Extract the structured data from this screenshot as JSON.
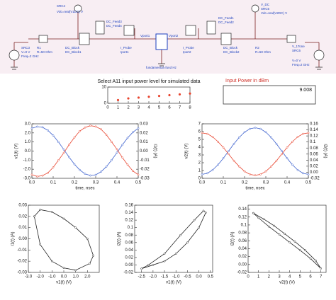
{
  "schematic": {
    "labels": [
      "SRC4",
      "Vdc=real(V1DC) V",
      "DC_Feed3",
      "DC_Feed4",
      "Vport1",
      "I_Probe",
      "Iport1",
      "DC_Block",
      "DC_Block1",
      "R1",
      "R=50 Ohm",
      "SRC3",
      "V=0 V",
      "Freq=2 GHz",
      "fundamental=fund Hz",
      "Vport2",
      "I_Probe",
      "Iport2",
      "V_DC",
      "SRC5",
      "Vdc=real(V2DC) V",
      "DC_Feed1",
      "DC_Feed2",
      "DC_Block",
      "DC_Block2",
      "R2",
      "R=50 Ohm",
      "V_1Tone",
      "SRC6",
      "V=0 V",
      "Freq=2 GHz"
    ]
  },
  "power_box": {
    "label": "Input Power in dBm",
    "value": "9.008"
  },
  "chart_data": [
    {
      "type": "scatter",
      "title": "Select A11 input power level for simulated data",
      "x": [
        1,
        2,
        3,
        4,
        5,
        6,
        7,
        8
      ],
      "series": [
        {
          "color": "#e8442e",
          "values": [
            2,
            3,
            3.5,
            4,
            4.5,
            5,
            5.5,
            6
          ]
        }
      ],
      "xlim": [
        0,
        8
      ],
      "xticks": [
        0,
        1,
        2,
        3,
        4,
        5,
        6,
        7,
        8
      ],
      "ylim": [
        0,
        10
      ],
      "yticks": [
        0,
        10
      ],
      "grid": false
    },
    {
      "type": "line",
      "xlabel": "time, nsec",
      "ylabel": "v1(t) (V)",
      "y2label": "i1(t) (A)",
      "x": [
        0,
        0.025,
        0.05,
        0.075,
        0.1,
        0.125,
        0.15,
        0.175,
        0.2,
        0.225,
        0.25,
        0.275,
        0.3,
        0.325,
        0.35,
        0.375,
        0.4,
        0.425,
        0.45,
        0.475,
        0.5
      ],
      "series": [
        {
          "color": "#3a5fcd",
          "values": [
            2.51,
            2.69,
            2.62,
            2.28,
            1.72,
            0.99,
            0.17,
            -0.67,
            -1.45,
            -2.08,
            -2.51,
            -2.69,
            -2.62,
            -2.28,
            -1.72,
            -0.99,
            -0.17,
            0.67,
            1.45,
            2.08,
            2.51
          ]
        },
        {
          "color": "#e8442e",
          "axis": "y2",
          "values": [
            -0.026,
            -0.028,
            -0.027,
            -0.024,
            -0.018,
            -0.01,
            -0.002,
            0.007,
            0.015,
            0.022,
            0.026,
            0.028,
            0.027,
            0.024,
            0.018,
            0.01,
            0.002,
            -0.007,
            -0.015,
            -0.022,
            -0.026
          ]
        }
      ],
      "xlim": [
        0,
        0.5
      ],
      "xticks": [
        {
          "value": 0,
          "label": "0.0"
        },
        0.1,
        0.2,
        0.3,
        0.4,
        0.5
      ],
      "ylim": [
        -3,
        3
      ],
      "yticks": [
        {
          "value": -3,
          "label": "-3.0"
        },
        {
          "value": -2,
          "label": "-2.0"
        },
        {
          "value": -1,
          "label": "-1.0"
        },
        {
          "value": 0,
          "label": "0.0"
        },
        {
          "value": 1,
          "label": "1.0"
        },
        {
          "value": 2,
          "label": "2.0"
        },
        {
          "value": 3,
          "label": "3.0"
        }
      ],
      "y2lim": [
        -0.03,
        0.03
      ],
      "y2ticks": [
        -0.03,
        -0.02,
        -0.01,
        {
          "value": 0,
          "label": "0.00"
        },
        0.01,
        0.02,
        0.03
      ],
      "grid": false
    },
    {
      "type": "line",
      "xlabel": "time, nsec",
      "ylabel": "v2(t) (V)",
      "y2label": "i2(t) (A)",
      "x": [
        0,
        0.025,
        0.05,
        0.075,
        0.1,
        0.125,
        0.15,
        0.175,
        0.2,
        0.225,
        0.25,
        0.275,
        0.3,
        0.325,
        0.35,
        0.375,
        0.4,
        0.425,
        0.45,
        0.475,
        0.5
      ],
      "series": [
        {
          "color": "#3a5fcd",
          "values": [
            0.5,
            0.65,
            1.07,
            1.74,
            2.57,
            3.5,
            4.43,
            5.26,
            5.93,
            6.35,
            6.5,
            6.35,
            5.93,
            5.26,
            4.43,
            3.5,
            2.57,
            1.74,
            1.07,
            0.65,
            0.5
          ]
        },
        {
          "color": "#e8442e",
          "axis": "y2",
          "values": [
            0.13,
            0.127,
            0.117,
            0.101,
            0.082,
            0.06,
            0.038,
            0.019,
            0.003,
            -0.007,
            -0.01,
            -0.007,
            0.003,
            0.019,
            0.038,
            0.06,
            0.082,
            0.101,
            0.117,
            0.127,
            0.13
          ]
        }
      ],
      "xlim": [
        0,
        0.5
      ],
      "xticks": [
        {
          "value": 0,
          "label": "0.0"
        },
        0.1,
        0.2,
        0.3,
        0.4,
        0.5
      ],
      "ylim": [
        0,
        7
      ],
      "yticks": [
        0,
        1,
        2,
        3,
        4,
        5,
        6,
        7
      ],
      "y2lim": [
        -0.02,
        0.16
      ],
      "y2ticks": [
        -0.02,
        {
          "value": 0,
          "label": "0.00"
        },
        0.02,
        0.04,
        0.06,
        0.08,
        0.1,
        0.12,
        0.14,
        0.16
      ],
      "grid": false
    },
    {
      "type": "line",
      "xlabel": "v1(t) (V)",
      "ylabel": "i1(t) (A)",
      "x": [
        -2.5,
        -2.0,
        -1.0,
        0.0,
        1.0,
        2.0,
        2.5,
        2.2,
        1.0,
        0.0,
        -1.0,
        -2.0,
        -2.5
      ],
      "series": [
        {
          "color": "#222222",
          "values": [
            0.02,
            0.026,
            0.024,
            0.018,
            0.01,
            0.0,
            -0.015,
            -0.022,
            -0.028,
            -0.026,
            -0.02,
            -0.005,
            0.02
          ]
        }
      ],
      "xlim": [
        -3,
        3
      ],
      "xticks": [
        {
          "value": -3,
          "label": "-3.0"
        },
        {
          "value": -2,
          "label": "-2.0"
        },
        {
          "value": -1,
          "label": "-1.0"
        },
        {
          "value": 0,
          "label": "0.0"
        },
        {
          "value": 1,
          "label": "1.0"
        },
        {
          "value": 2,
          "label": "2.0"
        }
      ],
      "ylim": [
        -0.03,
        0.03
      ],
      "yticks": [
        -0.03,
        -0.02,
        -0.01,
        {
          "value": 0,
          "label": "0.00"
        },
        0.01,
        0.02,
        0.03
      ],
      "grid": false
    },
    {
      "type": "line",
      "xlabel": "v1(t) (V)",
      "ylabel": "i2(t) (A)",
      "x": [
        -2.5,
        -2.0,
        -1.5,
        -1.0,
        -0.5,
        0.0,
        0.3,
        0.2,
        -0.2,
        -0.8,
        -1.5,
        -2.2,
        -2.5
      ],
      "series": [
        {
          "color": "#222222",
          "values": [
            -0.01,
            0.0,
            0.01,
            0.03,
            0.06,
            0.1,
            0.14,
            0.145,
            0.12,
            0.08,
            0.03,
            0.0,
            -0.01
          ]
        }
      ],
      "xlim": [
        -2.8,
        0.6
      ],
      "xticks": [
        {
          "value": -2.5,
          "label": "-2.5"
        },
        {
          "value": -2,
          "label": "-2.0"
        },
        {
          "value": -1.5,
          "label": "-1.5"
        },
        {
          "value": -1,
          "label": "-1.0"
        },
        {
          "value": -0.5,
          "label": "-0.5"
        },
        {
          "value": 0,
          "label": "0.0"
        },
        {
          "value": 0.5,
          "label": "0.5"
        }
      ],
      "ylim": [
        -0.02,
        0.16
      ],
      "yticks": [
        -0.02,
        {
          "value": 0,
          "label": "0.00"
        },
        0.02,
        0.04,
        0.06,
        0.08,
        0.1,
        0.12,
        0.14,
        0.16
      ],
      "grid": false
    },
    {
      "type": "line",
      "xlabel": "v2(t) (V)",
      "ylabel": "i2(t) (A)",
      "x": [
        0.5,
        1.5,
        2.5,
        3.5,
        4.5,
        5.5,
        6.5,
        7.0,
        6.0,
        5.0,
        4.0,
        3.0,
        2.0,
        1.0,
        0.5
      ],
      "series": [
        {
          "color": "#222222",
          "values": [
            0.13,
            0.115,
            0.098,
            0.078,
            0.058,
            0.036,
            0.01,
            -0.01,
            0.015,
            0.036,
            0.056,
            0.076,
            0.096,
            0.118,
            0.13
          ]
        }
      ],
      "xlim": [
        0,
        7.5
      ],
      "xticks": [
        0,
        1,
        2,
        3,
        4,
        5,
        6,
        7
      ],
      "ylim": [
        -0.02,
        0.15
      ],
      "yticks": [
        -0.02,
        {
          "value": 0,
          "label": "0.00"
        },
        0.02,
        0.04,
        0.06,
        0.08,
        0.1,
        0.12,
        0.14
      ],
      "grid": false
    }
  ]
}
